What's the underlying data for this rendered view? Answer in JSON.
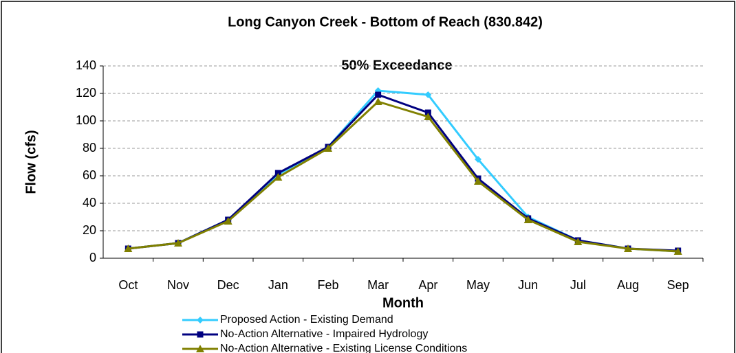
{
  "chart_data": {
    "type": "line",
    "title": "Long Canyon Creek - Bottom of Reach (830.842)",
    "annotation": "50% Exceedance",
    "x_label": "Month",
    "y_label": "Flow (cfs)",
    "categories": [
      "Oct",
      "Nov",
      "Dec",
      "Jan",
      "Feb",
      "Mar",
      "Apr",
      "May",
      "Jun",
      "Jul",
      "Aug",
      "Sep"
    ],
    "series": [
      {
        "name": "Proposed Action - Existing Demand",
        "color": "#33ccff",
        "marker": "diamond",
        "values": [
          7,
          11,
          28,
          61,
          81,
          122,
          119,
          72,
          30,
          13,
          7,
          5
        ]
      },
      {
        "name": "No-Action Alternative - Impaired Hydrology",
        "color": "#000080",
        "marker": "square",
        "values": [
          7,
          11,
          28,
          62,
          81,
          119,
          106,
          58,
          29,
          13,
          7,
          5.5
        ]
      },
      {
        "name": "No-Action Alternative - Existing License Conditions",
        "color": "#808000",
        "marker": "triangle",
        "values": [
          7,
          11,
          27,
          59,
          80,
          114,
          103,
          56,
          28,
          12,
          7,
          5
        ]
      }
    ],
    "ylim": [
      0,
      140
    ],
    "yticks": [
      0,
      20,
      40,
      60,
      80,
      100,
      120,
      140
    ],
    "grid": true
  }
}
